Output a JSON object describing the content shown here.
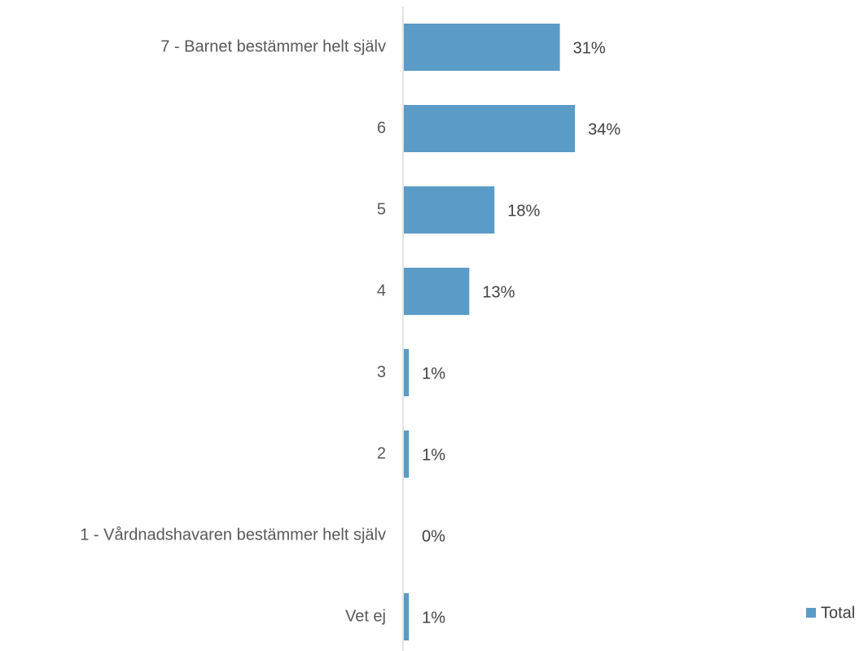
{
  "chart_data": {
    "type": "bar",
    "orientation": "horizontal",
    "categories": [
      "7 - Barnet bestämmer helt själv",
      "6",
      "5",
      "4",
      "3",
      "2",
      "1 - Vårdnadshavaren bestämmer helt själv",
      "Vet ej"
    ],
    "series": [
      {
        "name": "Total",
        "values": [
          31,
          34,
          18,
          13,
          1,
          1,
          0,
          1
        ],
        "labels": [
          "31%",
          "34%",
          "18%",
          "13%",
          "1%",
          "1%",
          "0%",
          "1%"
        ]
      }
    ],
    "bar_color": "#5b9bc8",
    "axis_color": "#d9d9d9",
    "legend_position": "bottom-right",
    "grid": false
  }
}
